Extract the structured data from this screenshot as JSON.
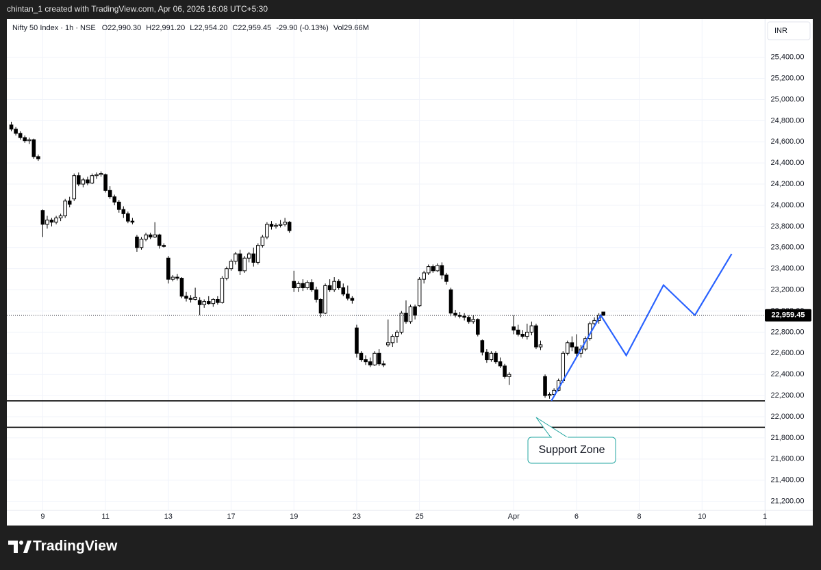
{
  "caption": "chintan_1 created with TradingView.com, Apr 06, 2026 16:08 UTC+5:30",
  "footer": "TradingView",
  "chart_data": {
    "type": "candlestick",
    "symbol": "Nifty 50 Index · 1h · NSE",
    "ohlc": [
      {
        "key": "O",
        "value": "22,990.30"
      },
      {
        "key": "H",
        "value": "22,991.20"
      },
      {
        "key": "L",
        "value": "22,954.20"
      },
      {
        "key": "C",
        "value": "22,959.45"
      }
    ],
    "change": "-29.90 (-0.13%)",
    "volume": {
      "key": "Vol",
      "value": "29.66M"
    },
    "currency": "INR",
    "open": [
      24760,
      24720,
      24680,
      24640,
      24610,
      24620,
      24460,
      23950,
      23820,
      23860,
      23840,
      23880,
      23900,
      24040,
      24060,
      24280,
      24200,
      24240,
      24210,
      24280,
      24290,
      24290,
      24140,
      24080,
      24030,
      23960,
      23920,
      23850,
      23700,
      23600,
      23680,
      23720,
      23700,
      23720,
      23620,
      23500,
      23300,
      23320,
      23310,
      23140,
      23120,
      23110,
      23100,
      23060,
      23090,
      23070,
      23110,
      23080,
      23310,
      23400,
      23470,
      23540,
      23380,
      23500,
      23540,
      23460,
      23620,
      23700,
      23820,
      23800,
      23810,
      23820,
      23840,
      23280,
      23220,
      23260,
      23220,
      23270,
      23200,
      23110,
      22980,
      23240,
      23200,
      23280,
      23220,
      23160,
      23120,
      22840,
      22600,
      22540,
      22520,
      22490,
      22600,
      22500,
      22680,
      22700,
      22760,
      22800,
      22980,
      22900,
      23040,
      23050,
      23300,
      23360,
      23420,
      23380,
      23430,
      23340,
      23200,
      22980,
      22960,
      22950,
      22940,
      22900,
      22920,
      22720,
      22610,
      22540,
      22600,
      22520,
      22480,
      22380,
      22850,
      22820,
      22780,
      22760,
      22800,
      22860,
      22660,
      22380,
      22200,
      22210,
      22250,
      22340,
      22600,
      22700,
      22660,
      22600,
      22640,
      22740,
      22880,
      22910,
      22990.3
    ],
    "high": [
      24790,
      24740,
      24700,
      24660,
      24640,
      24630,
      24480,
      23960,
      23900,
      23880,
      23900,
      23920,
      24060,
      24080,
      24300,
      24310,
      24260,
      24270,
      24300,
      24310,
      24320,
      24300,
      24180,
      24100,
      24050,
      23990,
      23940,
      23880,
      23720,
      23700,
      23740,
      23740,
      23840,
      23730,
      23640,
      23520,
      23340,
      23350,
      23320,
      23180,
      23150,
      23220,
      23130,
      23110,
      23140,
      23120,
      23140,
      23330,
      23420,
      23490,
      23560,
      23580,
      23520,
      23560,
      23600,
      23640,
      23720,
      23840,
      23850,
      23830,
      23860,
      23880,
      23850,
      23380,
      23280,
      23300,
      23290,
      23300,
      23230,
      23120,
      23260,
      23300,
      23320,
      23300,
      23260,
      23240,
      23140,
      22870,
      22620,
      22580,
      22560,
      22620,
      22640,
      22530,
      22920,
      22780,
      22820,
      23000,
      23100,
      23060,
      23060,
      23320,
      23380,
      23440,
      23440,
      23450,
      23460,
      23360,
      23220,
      23010,
      22990,
      22980,
      22960,
      22960,
      22930,
      22730,
      22640,
      22620,
      22620,
      22560,
      22500,
      22420,
      22960,
      22870,
      22820,
      22880,
      22900,
      22880,
      22720,
      22400,
      22230,
      22270,
      22360,
      22620,
      22720,
      22760,
      22780,
      22680,
      22760,
      22900,
      22940,
      22980,
      22991.2
    ],
    "low": [
      24700,
      24660,
      24620,
      24590,
      24580,
      24440,
      24420,
      23700,
      23780,
      23800,
      23820,
      23850,
      23880,
      23980,
      24040,
      24180,
      24170,
      24190,
      24200,
      24250,
      24270,
      24120,
      24060,
      24000,
      23930,
      23880,
      23830,
      23820,
      23560,
      23580,
      23660,
      23680,
      23690,
      23590,
      23600,
      23260,
      23280,
      23290,
      23120,
      23090,
      23080,
      23100,
      22960,
      23030,
      23060,
      23040,
      23060,
      23070,
      23290,
      23380,
      23440,
      23340,
      23360,
      23460,
      23420,
      23440,
      23600,
      23680,
      23770,
      23780,
      23790,
      23800,
      23740,
      23180,
      23180,
      23190,
      23200,
      23180,
      23080,
      22940,
      22970,
      23180,
      23180,
      23200,
      23140,
      23100,
      23070,
      22560,
      22520,
      22490,
      22470,
      22480,
      22480,
      22470,
      22660,
      22660,
      22700,
      22780,
      22880,
      22880,
      22920,
      23040,
      23260,
      23340,
      23360,
      23370,
      23300,
      23250,
      22950,
      22940,
      22930,
      22910,
      22880,
      22880,
      22760,
      22580,
      22510,
      22520,
      22500,
      22460,
      22360,
      22300,
      22780,
      22760,
      22740,
      22730,
      22770,
      22640,
      22630,
      22180,
      22170,
      22190,
      22240,
      22320,
      22580,
      22620,
      22560,
      22560,
      22620,
      22720,
      22860,
      22880,
      22954.2
    ],
    "close": [
      24720,
      24680,
      24640,
      24610,
      24620,
      24460,
      24440,
      23820,
      23860,
      23840,
      23880,
      23900,
      24040,
      24010,
      24280,
      24200,
      24240,
      24210,
      24280,
      24290,
      24300,
      24140,
      24080,
      24030,
      23960,
      23920,
      23850,
      23840,
      23600,
      23680,
      23720,
      23700,
      23720,
      23620,
      23610,
      23300,
      23320,
      23310,
      23140,
      23120,
      23110,
      23130,
      23060,
      23090,
      23070,
      23110,
      23080,
      23310,
      23400,
      23470,
      23540,
      23380,
      23500,
      23540,
      23460,
      23620,
      23700,
      23820,
      23800,
      23810,
      23820,
      23840,
      23760,
      23220,
      23260,
      23220,
      23270,
      23200,
      23110,
      22980,
      23240,
      23200,
      23280,
      23220,
      23160,
      23120,
      23100,
      22600,
      22540,
      22520,
      22490,
      22600,
      22500,
      22490,
      22700,
      22760,
      22800,
      22980,
      22900,
      23040,
      22960,
      23300,
      23360,
      23420,
      23380,
      23430,
      23340,
      23280,
      22980,
      22960,
      22950,
      22940,
      22900,
      22920,
      22780,
      22610,
      22540,
      22600,
      22520,
      22480,
      22380,
      22400,
      22820,
      22780,
      22760,
      22800,
      22860,
      22660,
      22680,
      22200,
      22210,
      22250,
      22340,
      22600,
      22700,
      22660,
      22600,
      22640,
      22740,
      22880,
      22910,
      22960,
      22959.45
    ],
    "up_color": "#ffffff",
    "down_color": "#000000",
    "xlim": [
      -1,
      168
    ],
    "xticks": [
      {
        "value": 7,
        "label": "9"
      },
      {
        "value": 21,
        "label": "11"
      },
      {
        "value": 35,
        "label": "13"
      },
      {
        "value": 49,
        "label": "17"
      },
      {
        "value": 63,
        "label": "19"
      },
      {
        "value": 77,
        "label": "23"
      },
      {
        "value": 91,
        "label": "25"
      },
      {
        "value": 112,
        "label": "Apr"
      },
      {
        "value": 126,
        "label": "6"
      },
      {
        "value": 140,
        "label": "8"
      },
      {
        "value": 154,
        "label": "10"
      },
      {
        "value": 168,
        "label": "1"
      }
    ],
    "ylim": [
      21120,
      25760
    ],
    "yticks": [
      {
        "value": 21200,
        "label": "21,200.00"
      },
      {
        "value": 21400,
        "label": "21,400.00"
      },
      {
        "value": 21600,
        "label": "21,600.00"
      },
      {
        "value": 21800,
        "label": "21,800.00"
      },
      {
        "value": 22000,
        "label": "22,000.00"
      },
      {
        "value": 22200,
        "label": "22,200.00"
      },
      {
        "value": 22400,
        "label": "22,400.00"
      },
      {
        "value": 22600,
        "label": "22,600.00"
      },
      {
        "value": 22800,
        "label": "22,800.00"
      },
      {
        "value": 23000,
        "label": "23,000.00"
      },
      {
        "value": 23200,
        "label": "23,200.00"
      },
      {
        "value": 23400,
        "label": "23,400.00"
      },
      {
        "value": 23600,
        "label": "23,600.00"
      },
      {
        "value": 23800,
        "label": "23,800.00"
      },
      {
        "value": 24000,
        "label": "24,000.00"
      },
      {
        "value": 24200,
        "label": "24,200.00"
      },
      {
        "value": 24400,
        "label": "24,400.00"
      },
      {
        "value": 24600,
        "label": "24,600.00"
      },
      {
        "value": 24800,
        "label": "24,800.00"
      },
      {
        "value": 25000,
        "label": "25,000.00"
      },
      {
        "value": 25200,
        "label": "25,200.00"
      },
      {
        "value": 25400,
        "label": "25,400.00"
      }
    ],
    "grid": true,
    "last_price": {
      "value": 22959.45,
      "label": "22,959.45"
    },
    "support_lines": [
      22150,
      21900
    ],
    "support_color": "#000000",
    "projection": {
      "x": [
        120.4,
        131.4,
        137.1,
        145.4,
        152.4,
        160.6
      ],
      "values": [
        22150,
        22960,
        22580,
        23245,
        22960,
        23540
      ],
      "color": "#2962ff"
    },
    "annotation": "Support Zone"
  }
}
